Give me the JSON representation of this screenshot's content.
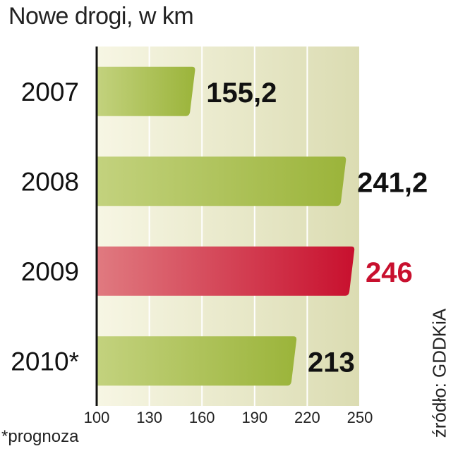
{
  "chart_data": {
    "type": "bar",
    "orientation": "horizontal",
    "title": "Nowe drogi, w km",
    "categories": [
      "2007",
      "2008",
      "2009",
      "2010*"
    ],
    "values": [
      155.2,
      241.2,
      246,
      213
    ],
    "value_labels": [
      "155,2",
      "241,2",
      "246",
      "213"
    ],
    "highlight_index": 2,
    "xlim": [
      100,
      250
    ],
    "xticks": [
      100,
      130,
      160,
      190,
      220,
      250
    ],
    "grid": true,
    "colors": {
      "bar": "#9bb43a",
      "bar_light": "#c3d27e",
      "highlight": "#c8102e",
      "highlight_light": "#e07a80",
      "highlight_text": "#c8102e",
      "background_light": "#f7f6e4",
      "background_dark": "#dbdcb2"
    }
  },
  "source": "źródło: GDDKiA",
  "footnote": "*prognoza"
}
